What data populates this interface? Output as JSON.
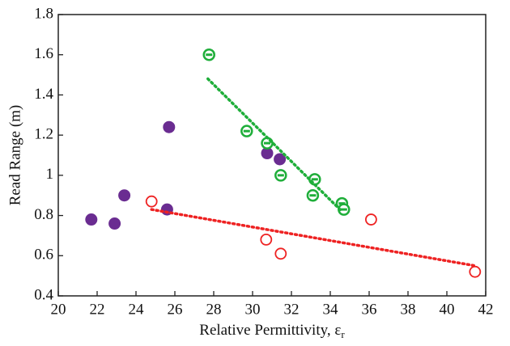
{
  "chart_data": {
    "type": "scatter",
    "ylabel": "Read Range (m)",
    "xlabel": {
      "text": "Relative Permittivity, ε",
      "subscript": "r"
    },
    "xlim": [
      20,
      42
    ],
    "xticks": [
      20,
      22,
      24,
      26,
      28,
      30,
      32,
      34,
      36,
      38,
      40,
      42
    ],
    "ylim": [
      0.4,
      1.8
    ],
    "yticks": [
      0.4,
      0.6,
      0.8,
      1,
      1.2,
      1.4,
      1.6,
      1.8
    ],
    "grid": false,
    "series": [
      {
        "color": "#6a2c91",
        "marker": "filled",
        "x": [
          21.7,
          22.9,
          23.4,
          25.6,
          25.7,
          30.75,
          31.4
        ],
        "values": [
          0.78,
          0.76,
          0.9,
          0.83,
          1.24,
          1.11,
          1.08
        ]
      },
      {
        "color": "#1fae3a",
        "marker": "barred",
        "x": [
          27.76,
          29.7,
          30.75,
          31.45,
          33.2,
          33.1,
          34.6,
          34.7
        ],
        "values": [
          1.6,
          1.22,
          1.16,
          1.0,
          0.98,
          0.9,
          0.86,
          0.83
        ]
      },
      {
        "color": "#ee2222",
        "marker": "open",
        "x": [
          24.8,
          30.7,
          31.45,
          36.1,
          41.45
        ],
        "values": [
          0.87,
          0.68,
          0.61,
          0.78,
          0.52
        ]
      },
      {
        "color": "#1fae3a",
        "marker": "trend",
        "x": [
          27.7,
          34.6
        ],
        "values": [
          1.48,
          0.82
        ]
      },
      {
        "color": "#ee2222",
        "marker": "trend",
        "x": [
          24.8,
          41.45
        ],
        "values": [
          0.83,
          0.55
        ]
      }
    ]
  }
}
